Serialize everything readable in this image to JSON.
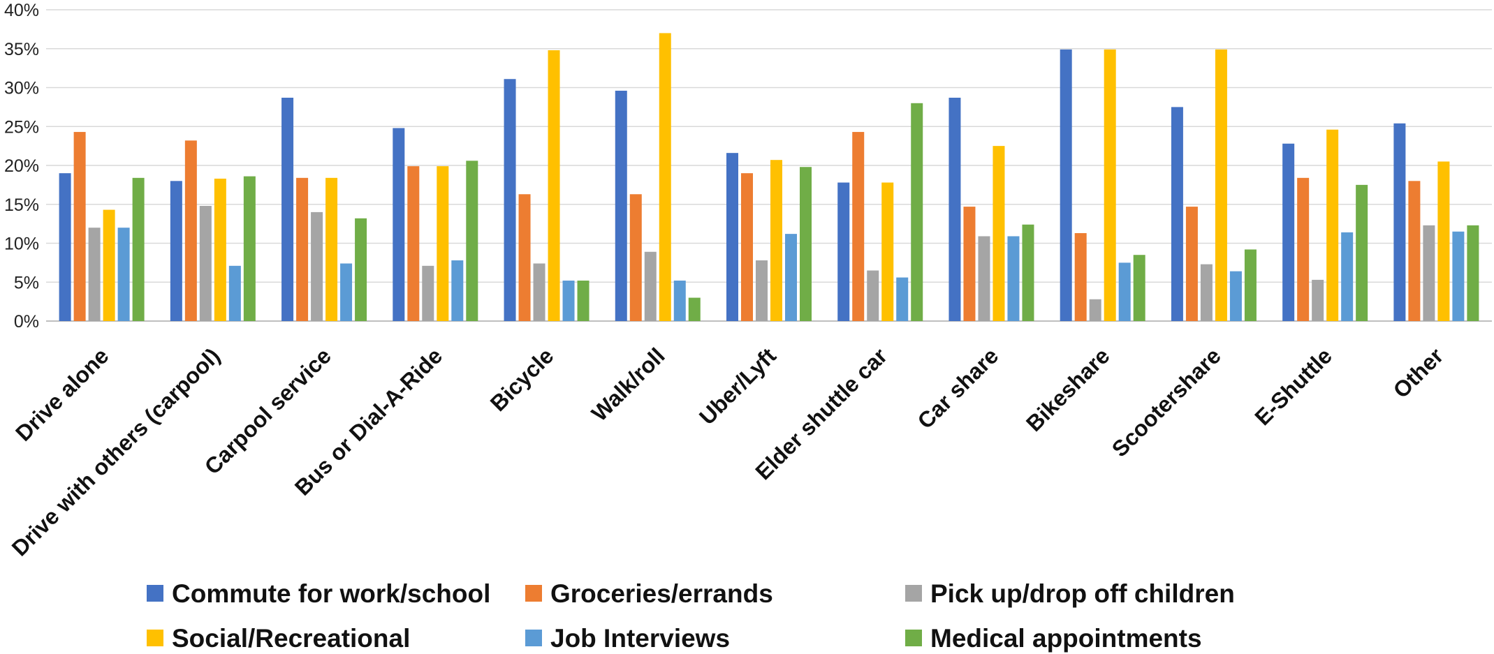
{
  "chart_data": {
    "type": "bar",
    "title": "",
    "xlabel": "",
    "ylabel": "",
    "ylim": [
      0,
      40
    ],
    "yticks": [
      0,
      5,
      10,
      15,
      20,
      25,
      30,
      35,
      40
    ],
    "ytick_labels": [
      "0%",
      "5%",
      "10%",
      "15%",
      "20%",
      "25%",
      "30%",
      "35%",
      "40%"
    ],
    "grid": true,
    "legend_position": "bottom",
    "categories": [
      "Drive alone",
      "Drive with others (carpool)",
      "Carpool service",
      "Bus or Dial-A-Ride",
      "Bicycle",
      "Walk/roll",
      "Uber/Lyft",
      "Elder shuttle car",
      "Car share",
      "Bikeshare",
      "Scootershare",
      "E-Shuttle",
      "Other"
    ],
    "series": [
      {
        "name": "Commute for work/school",
        "color": "#4472C4",
        "values": [
          19.0,
          18.0,
          28.7,
          24.8,
          31.1,
          29.6,
          21.6,
          17.8,
          28.7,
          34.9,
          27.5,
          22.8,
          25.4
        ]
      },
      {
        "name": "Groceries/errands",
        "color": "#ED7D31",
        "values": [
          24.3,
          23.2,
          18.4,
          19.9,
          16.3,
          16.3,
          19.0,
          24.3,
          14.7,
          11.3,
          14.7,
          18.4,
          18.0
        ]
      },
      {
        "name": "Pick up/drop off children",
        "color": "#A5A5A5",
        "values": [
          12.0,
          14.8,
          14.0,
          7.1,
          7.4,
          8.9,
          7.8,
          6.5,
          10.9,
          2.8,
          7.3,
          5.3,
          12.3
        ]
      },
      {
        "name": "Social/Recreational",
        "color": "#FFC000",
        "values": [
          14.3,
          18.3,
          18.4,
          19.9,
          34.8,
          37.0,
          20.7,
          17.8,
          22.5,
          34.9,
          34.9,
          24.6,
          20.5
        ]
      },
      {
        "name": "Job Interviews",
        "color": "#5B9BD5",
        "values": [
          12.0,
          7.1,
          7.4,
          7.8,
          5.2,
          5.2,
          11.2,
          5.6,
          10.9,
          7.5,
          6.4,
          11.4,
          11.5
        ]
      },
      {
        "name": "Medical appointments",
        "color": "#70AD47",
        "values": [
          18.4,
          18.6,
          13.2,
          20.6,
          5.2,
          3.0,
          19.8,
          28.0,
          12.4,
          8.5,
          9.2,
          17.5,
          12.3
        ]
      }
    ]
  }
}
